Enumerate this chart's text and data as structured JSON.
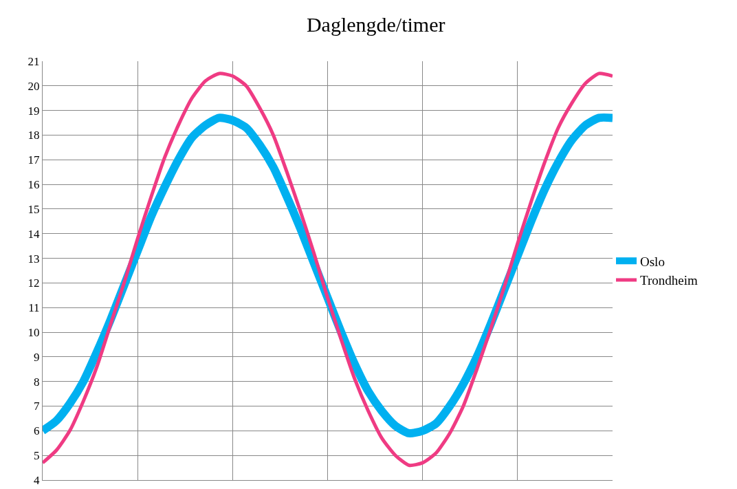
{
  "chart_data": {
    "type": "line",
    "title": "Daglengde/timer",
    "categories": [
      null,
      null,
      null,
      null,
      null,
      null,
      null,
      null,
      null,
      null,
      null,
      null,
      null,
      null,
      null,
      null,
      null,
      null,
      null,
      null,
      null,
      null,
      null,
      null,
      null,
      null,
      null,
      null,
      null,
      null,
      null,
      null,
      null,
      null,
      null,
      null,
      null,
      null,
      null,
      null,
      null,
      null,
      null
    ],
    "series": [
      {
        "name": "Oslo",
        "color": "#00b0f0",
        "values": [
          6.0,
          6.4,
          7.1,
          8.0,
          9.2,
          10.5,
          11.9,
          13.3,
          14.7,
          15.9,
          17.0,
          17.9,
          18.4,
          18.7,
          18.6,
          18.3,
          17.6,
          16.7,
          15.5,
          14.2,
          12.8,
          11.4,
          10.0,
          8.7,
          7.6,
          6.8,
          6.2,
          5.9,
          6.0,
          6.3,
          7.0,
          7.9,
          9.0,
          10.3,
          11.7,
          13.1,
          14.5,
          15.8,
          16.9,
          17.8,
          18.4,
          18.7,
          18.7
        ]
      },
      {
        "name": "Trondheim",
        "color": "#ef3b83",
        "values": [
          4.7,
          5.2,
          6.0,
          7.2,
          8.6,
          10.3,
          12.0,
          13.8,
          15.5,
          17.1,
          18.4,
          19.5,
          20.2,
          20.5,
          20.4,
          20.0,
          19.1,
          18.0,
          16.5,
          14.9,
          13.2,
          11.4,
          9.7,
          8.1,
          6.8,
          5.7,
          5.0,
          4.6,
          4.7,
          5.1,
          5.9,
          7.0,
          8.5,
          10.1,
          11.8,
          13.6,
          15.3,
          16.9,
          18.3,
          19.3,
          20.1,
          20.5,
          20.4
        ]
      }
    ],
    "ylim": [
      4,
      21
    ],
    "yticks": [
      4,
      5,
      6,
      7,
      8,
      9,
      10,
      11,
      12,
      13,
      14,
      15,
      16,
      17,
      18,
      19,
      20,
      21
    ],
    "grid": true,
    "legend": "right",
    "tick_labels": "y",
    "marker": "none",
    "line_style": "solid"
  }
}
